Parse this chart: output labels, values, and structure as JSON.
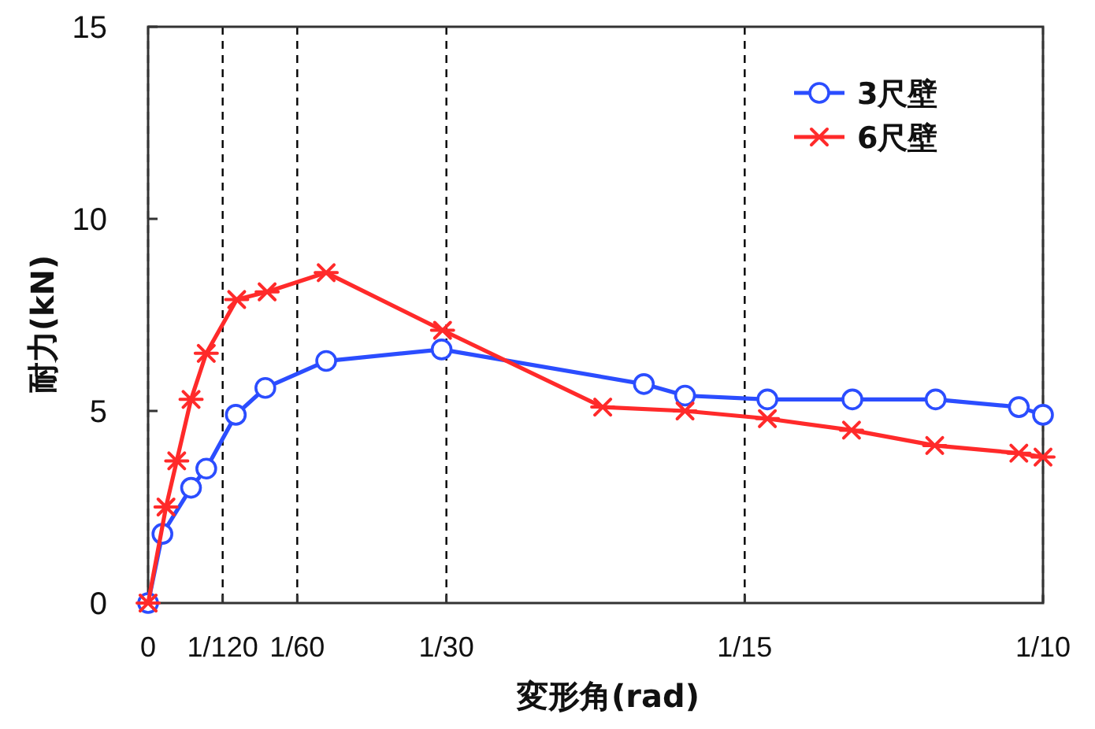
{
  "chart_data": {
    "type": "line",
    "xlabel": "変形角(rad)",
    "ylabel": "耐力(kN)",
    "xlim": [
      0,
      0.1
    ],
    "ylim": [
      0,
      15
    ],
    "xticks": [
      0,
      {
        "value": 0.008333,
        "label": "1/120"
      },
      {
        "value": 0.016667,
        "label": "1/60"
      },
      {
        "value": 0.033333,
        "label": "1/30"
      },
      {
        "value": 0.066667,
        "label": "1/15"
      },
      {
        "value": 0.1,
        "label": "1/10"
      }
    ],
    "yticks": [
      0,
      5,
      10,
      15
    ],
    "grid": "x",
    "legend": "top right",
    "line_style": "solid",
    "series": [
      {
        "name": "3尺壁",
        "color": "#2b4dff",
        "marker": "circle",
        "x": [
          0,
          0.0016,
          0.0048,
          0.0065,
          0.0098,
          0.0131,
          0.0199,
          0.0328,
          0.0554,
          0.06,
          0.0692,
          0.0787,
          0.088,
          0.0973,
          0.1
        ],
        "values": [
          0,
          1.8,
          3.0,
          3.5,
          4.9,
          5.6,
          6.3,
          6.6,
          5.7,
          5.4,
          5.3,
          5.3,
          5.3,
          5.1,
          4.9
        ]
      },
      {
        "name": "6尺壁",
        "color": "#ff2a2a",
        "marker": "cross",
        "x": [
          0,
          0.002,
          0.0032,
          0.0048,
          0.0065,
          0.0099,
          0.0133,
          0.0199,
          0.0329,
          0.0508,
          0.06,
          0.0692,
          0.0786,
          0.0879,
          0.0973,
          0.1
        ],
        "values": [
          0,
          2.5,
          3.7,
          5.3,
          6.5,
          7.9,
          8.1,
          8.6,
          7.1,
          5.1,
          5.0,
          4.8,
          4.5,
          4.1,
          3.9,
          3.8
        ]
      }
    ]
  }
}
